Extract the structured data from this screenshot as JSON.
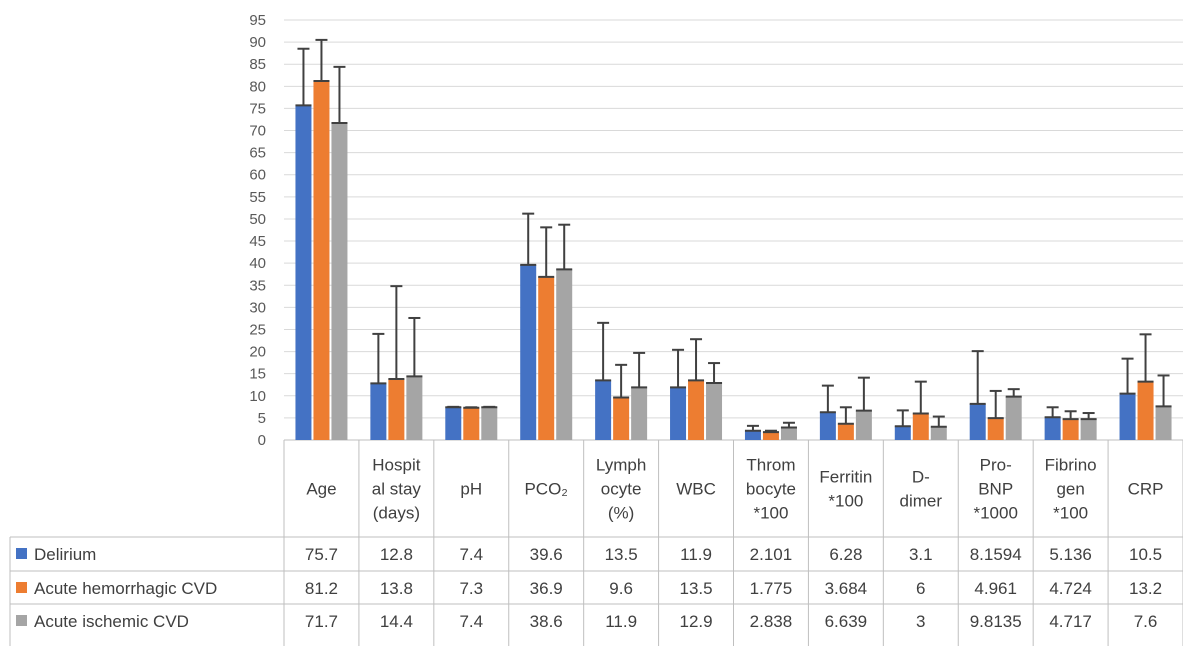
{
  "chart_data": {
    "type": "bar",
    "title": "",
    "xlabel": "",
    "ylabel": "",
    "ylim": [
      0,
      95
    ],
    "y_ticks": [
      0,
      5,
      10,
      15,
      20,
      25,
      30,
      35,
      40,
      45,
      50,
      55,
      60,
      65,
      70,
      75,
      80,
      85,
      90,
      95
    ],
    "grid": true,
    "legend_placement": "data-table",
    "error_bars": "upper, standard deviation",
    "categories": [
      [
        "Age"
      ],
      [
        "Hospit",
        "al stay",
        "(days)"
      ],
      [
        "pH"
      ],
      [
        "PCO₂"
      ],
      [
        "Lymph",
        "ocyte",
        "(%)"
      ],
      [
        "WBC"
      ],
      [
        "Throm",
        "bocyte",
        "*100"
      ],
      [
        "Ferritin",
        "*100"
      ],
      [
        "D-",
        "dimer"
      ],
      [
        "Pro-",
        "BNP",
        "*1000"
      ],
      [
        "Fibrino",
        "gen",
        "*100"
      ],
      [
        "CRP"
      ]
    ],
    "series": [
      {
        "name": "Delirium",
        "color": "#4472C4",
        "values": [
          75.7,
          12.8,
          7.4,
          39.6,
          13.5,
          11.9,
          2.101,
          6.28,
          3.1,
          8.1594,
          5.136,
          10.5
        ],
        "labels": [
          "75.7",
          "12.8",
          "7.4",
          "39.6",
          "13.5",
          "11.9",
          "2.101",
          "6.28",
          "3.1",
          "8.1594",
          "5.136",
          "10.5"
        ],
        "error_upper": [
          88.5,
          24,
          7.5,
          51.2,
          26.5,
          20.4,
          3.2,
          12.3,
          6.7,
          20.1,
          7.4,
          18.4
        ]
      },
      {
        "name": "Acute hemorrhagic CVD",
        "color": "#ED7D31",
        "values": [
          81.2,
          13.8,
          7.3,
          36.9,
          9.6,
          13.5,
          1.775,
          3.684,
          6,
          4.961,
          4.724,
          13.2
        ],
        "labels": [
          "81.2",
          "13.8",
          "7.3",
          "36.9",
          "9.6",
          "13.5",
          "1.775",
          "3.684",
          "6",
          "4.961",
          "4.724",
          "13.2"
        ],
        "error_upper": [
          90.5,
          34.8,
          7.4,
          48.1,
          17,
          22.8,
          2.1,
          7.4,
          13.2,
          11.1,
          6.5,
          23.9
        ]
      },
      {
        "name": "Acute ischemic CVD",
        "color": "#A5A5A5",
        "values": [
          71.7,
          14.4,
          7.4,
          38.6,
          11.9,
          12.9,
          2.838,
          6.639,
          3,
          9.8135,
          4.717,
          7.6
        ],
        "labels": [
          "71.7",
          "14.4",
          "7.4",
          "38.6",
          "11.9",
          "12.9",
          "2.838",
          "6.639",
          "3",
          "9.8135",
          "4.717",
          "7.6"
        ],
        "error_upper": [
          84.4,
          27.6,
          7.5,
          48.7,
          19.7,
          17.4,
          3.9,
          14.1,
          5.3,
          11.5,
          6.1,
          14.6
        ]
      }
    ]
  }
}
